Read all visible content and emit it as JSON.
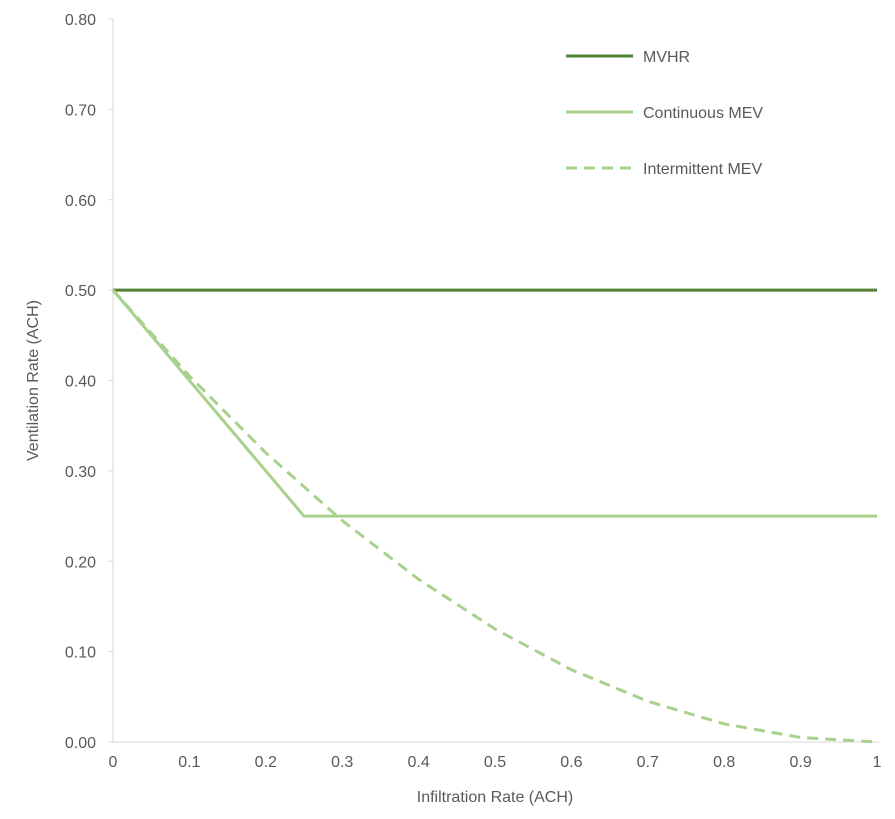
{
  "chart_data": {
    "type": "line",
    "title": "",
    "xlabel": "Infiltration Rate (ACH)",
    "ylabel": "Ventilation Rate (ACH)",
    "xlim": [
      0,
      1
    ],
    "ylim": [
      0,
      0.8
    ],
    "x_ticks": [
      "0",
      "0.1",
      "0.2",
      "0.3",
      "0.4",
      "0.5",
      "0.6",
      "0.7",
      "0.8",
      "0.9",
      "1"
    ],
    "y_ticks": [
      "0.00",
      "0.10",
      "0.20",
      "0.30",
      "0.40",
      "0.50",
      "0.60",
      "0.70",
      "0.80"
    ],
    "grid": false,
    "legend_position": "top-right",
    "series": [
      {
        "name": "MVHR",
        "color": "#538135",
        "style": "solid",
        "x": [
          0,
          1
        ],
        "y": [
          0.5,
          0.5
        ]
      },
      {
        "name": "Continuous MEV",
        "color": "#a9d18e",
        "style": "solid",
        "x": [
          0,
          0.25,
          1
        ],
        "y": [
          0.5,
          0.25,
          0.25
        ]
      },
      {
        "name": "Intermittent MEV",
        "color": "#a9d18e",
        "style": "dashed",
        "x": [
          0,
          0.1,
          0.2,
          0.3,
          0.4,
          0.5,
          0.6,
          0.7,
          0.8,
          0.9,
          1.0
        ],
        "y": [
          0.5,
          0.405,
          0.32,
          0.245,
          0.18,
          0.125,
          0.08,
          0.045,
          0.02,
          0.005,
          0.0
        ]
      }
    ]
  }
}
